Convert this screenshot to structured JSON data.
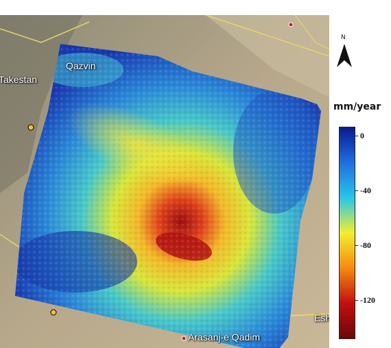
{
  "map": {
    "place_labels": {
      "takestan": "Takestan",
      "qazvin": "Qazvin",
      "arasanj": "Arasanj-e Qadim",
      "esh": "Esh"
    }
  },
  "north_arrow": {
    "letter": "N"
  },
  "legend": {
    "title": "mm/year",
    "ticks": [
      "0",
      "-40",
      "-80",
      "-120"
    ],
    "colors": [
      "#0a1a8c",
      "#1f6fe0",
      "#28c6e8",
      "#f2ef2f",
      "#f58a10",
      "#c01010",
      "#6a0808"
    ]
  }
}
